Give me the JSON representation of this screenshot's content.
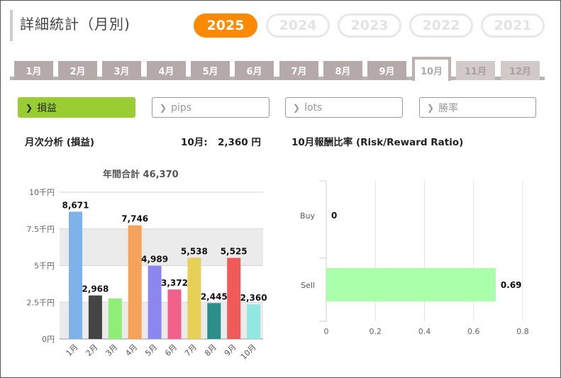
{
  "header": {
    "title": "詳細統計（月別)"
  },
  "years": [
    "2025",
    "2024",
    "2023",
    "2022",
    "2021"
  ],
  "active_year": "2025",
  "months": [
    "1月",
    "2月",
    "3月",
    "4月",
    "5月",
    "6月",
    "7月",
    "8月",
    "9月",
    "10月",
    "11月",
    "12月"
  ],
  "active_month": "10月",
  "filters": [
    "損益",
    "pips",
    "lots",
    "勝率"
  ],
  "active_filter": "損益",
  "left_panel": {
    "heading": "月次分析 (損益)",
    "month_total_label": "10月:",
    "month_total_value": "2,360 円"
  },
  "right_panel": {
    "heading": "10月報酬比率 (Risk/Reward Ratio)"
  },
  "colors": {
    "accent": "#ff8a00",
    "active_filter": "#9acd32",
    "tab": "#b5a9a9"
  },
  "chart_data": [
    {
      "type": "bar",
      "title": "年間合計 46,370",
      "categories": [
        "1月",
        "2月",
        "3月",
        "4月",
        "5月",
        "6月",
        "7月",
        "8月",
        "9月",
        "10月"
      ],
      "values": [
        8671,
        2968,
        2760,
        7746,
        4989,
        3372,
        5538,
        2445,
        5525,
        2360
      ],
      "data_labels": [
        "8,671",
        "2,968",
        "",
        "7,746",
        "4,989",
        "3,372",
        "5,538",
        "2,445",
        "5,525",
        "2,360"
      ],
      "bar_colors": [
        "#7db3e8",
        "#444444",
        "#90ee78",
        "#f7a25a",
        "#8b87ee",
        "#f0608a",
        "#e6d057",
        "#2a8f8a",
        "#f25a5a",
        "#90e8e0"
      ],
      "yticks": [
        0,
        2500,
        5000,
        7500,
        10000
      ],
      "ytick_labels": [
        "0円",
        "2.5千円",
        "5千円",
        "7.5千円",
        "10千円"
      ],
      "ylim": [
        0,
        10000
      ],
      "grid": "alternating bands"
    },
    {
      "type": "bar",
      "orientation": "horizontal",
      "categories": [
        "Buy",
        "Sell"
      ],
      "values": [
        0,
        0.69
      ],
      "data_labels": [
        "0",
        "0.69"
      ],
      "bar_color": "#aaffaa",
      "xticks": [
        "0",
        "0.2",
        "0.4",
        "0.6",
        "0.8"
      ],
      "xlim": [
        0,
        0.8
      ],
      "grid": "vertical"
    }
  ]
}
